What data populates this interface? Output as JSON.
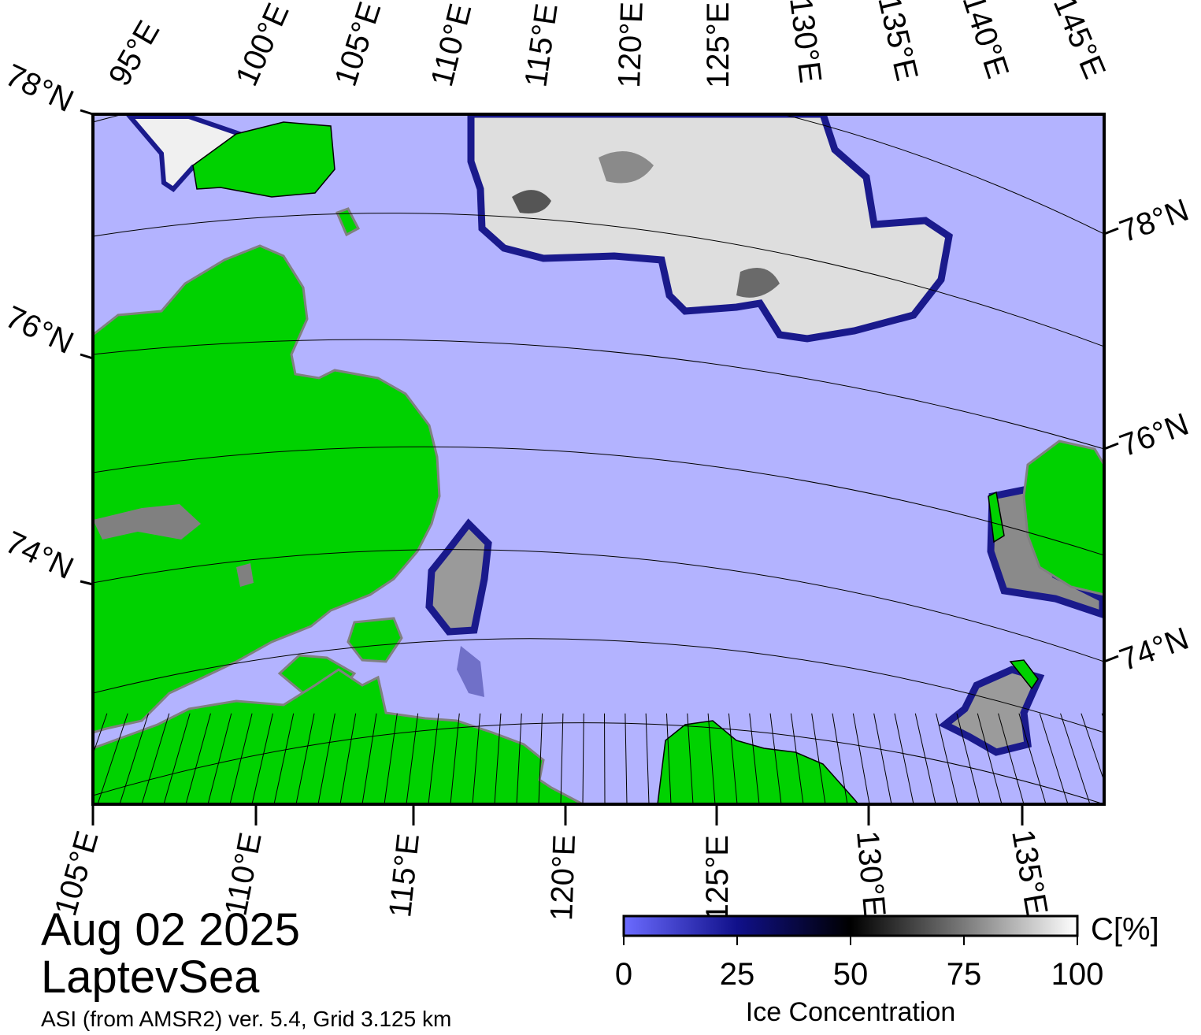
{
  "map": {
    "date": "Aug 02 2025",
    "region": "LaptevSea",
    "credit": "ASI (from AMSR2) ver. 5.4,  Grid 3.125 km",
    "top_lon_labels": [
      "95°E",
      "100°E",
      "105°E",
      "110°E",
      "115°E",
      "120°E",
      "125°E",
      "130°E",
      "135°E",
      "140°E",
      "145°E"
    ],
    "bottom_lon_labels": [
      "105°E",
      "110°E",
      "115°E",
      "120°E",
      "125°E",
      "130°E",
      "135°E"
    ],
    "left_lat_labels": [
      "78°N",
      "76°N",
      "74°N"
    ],
    "right_lat_labels": [
      "78°N",
      "76°N",
      "74°N"
    ],
    "colors": {
      "open_water": "#b3b3ff",
      "land": "#00d200",
      "land_ice": "#808080",
      "ice_low": "#5050ff",
      "ice_mid": "#000000",
      "ice_high": "#ffffff"
    }
  },
  "colorbar": {
    "title": "Ice Concentration",
    "unit": "C[%]",
    "ticks": [
      "0",
      "25",
      "50",
      "75",
      "100"
    ],
    "range": [
      0,
      100
    ]
  }
}
